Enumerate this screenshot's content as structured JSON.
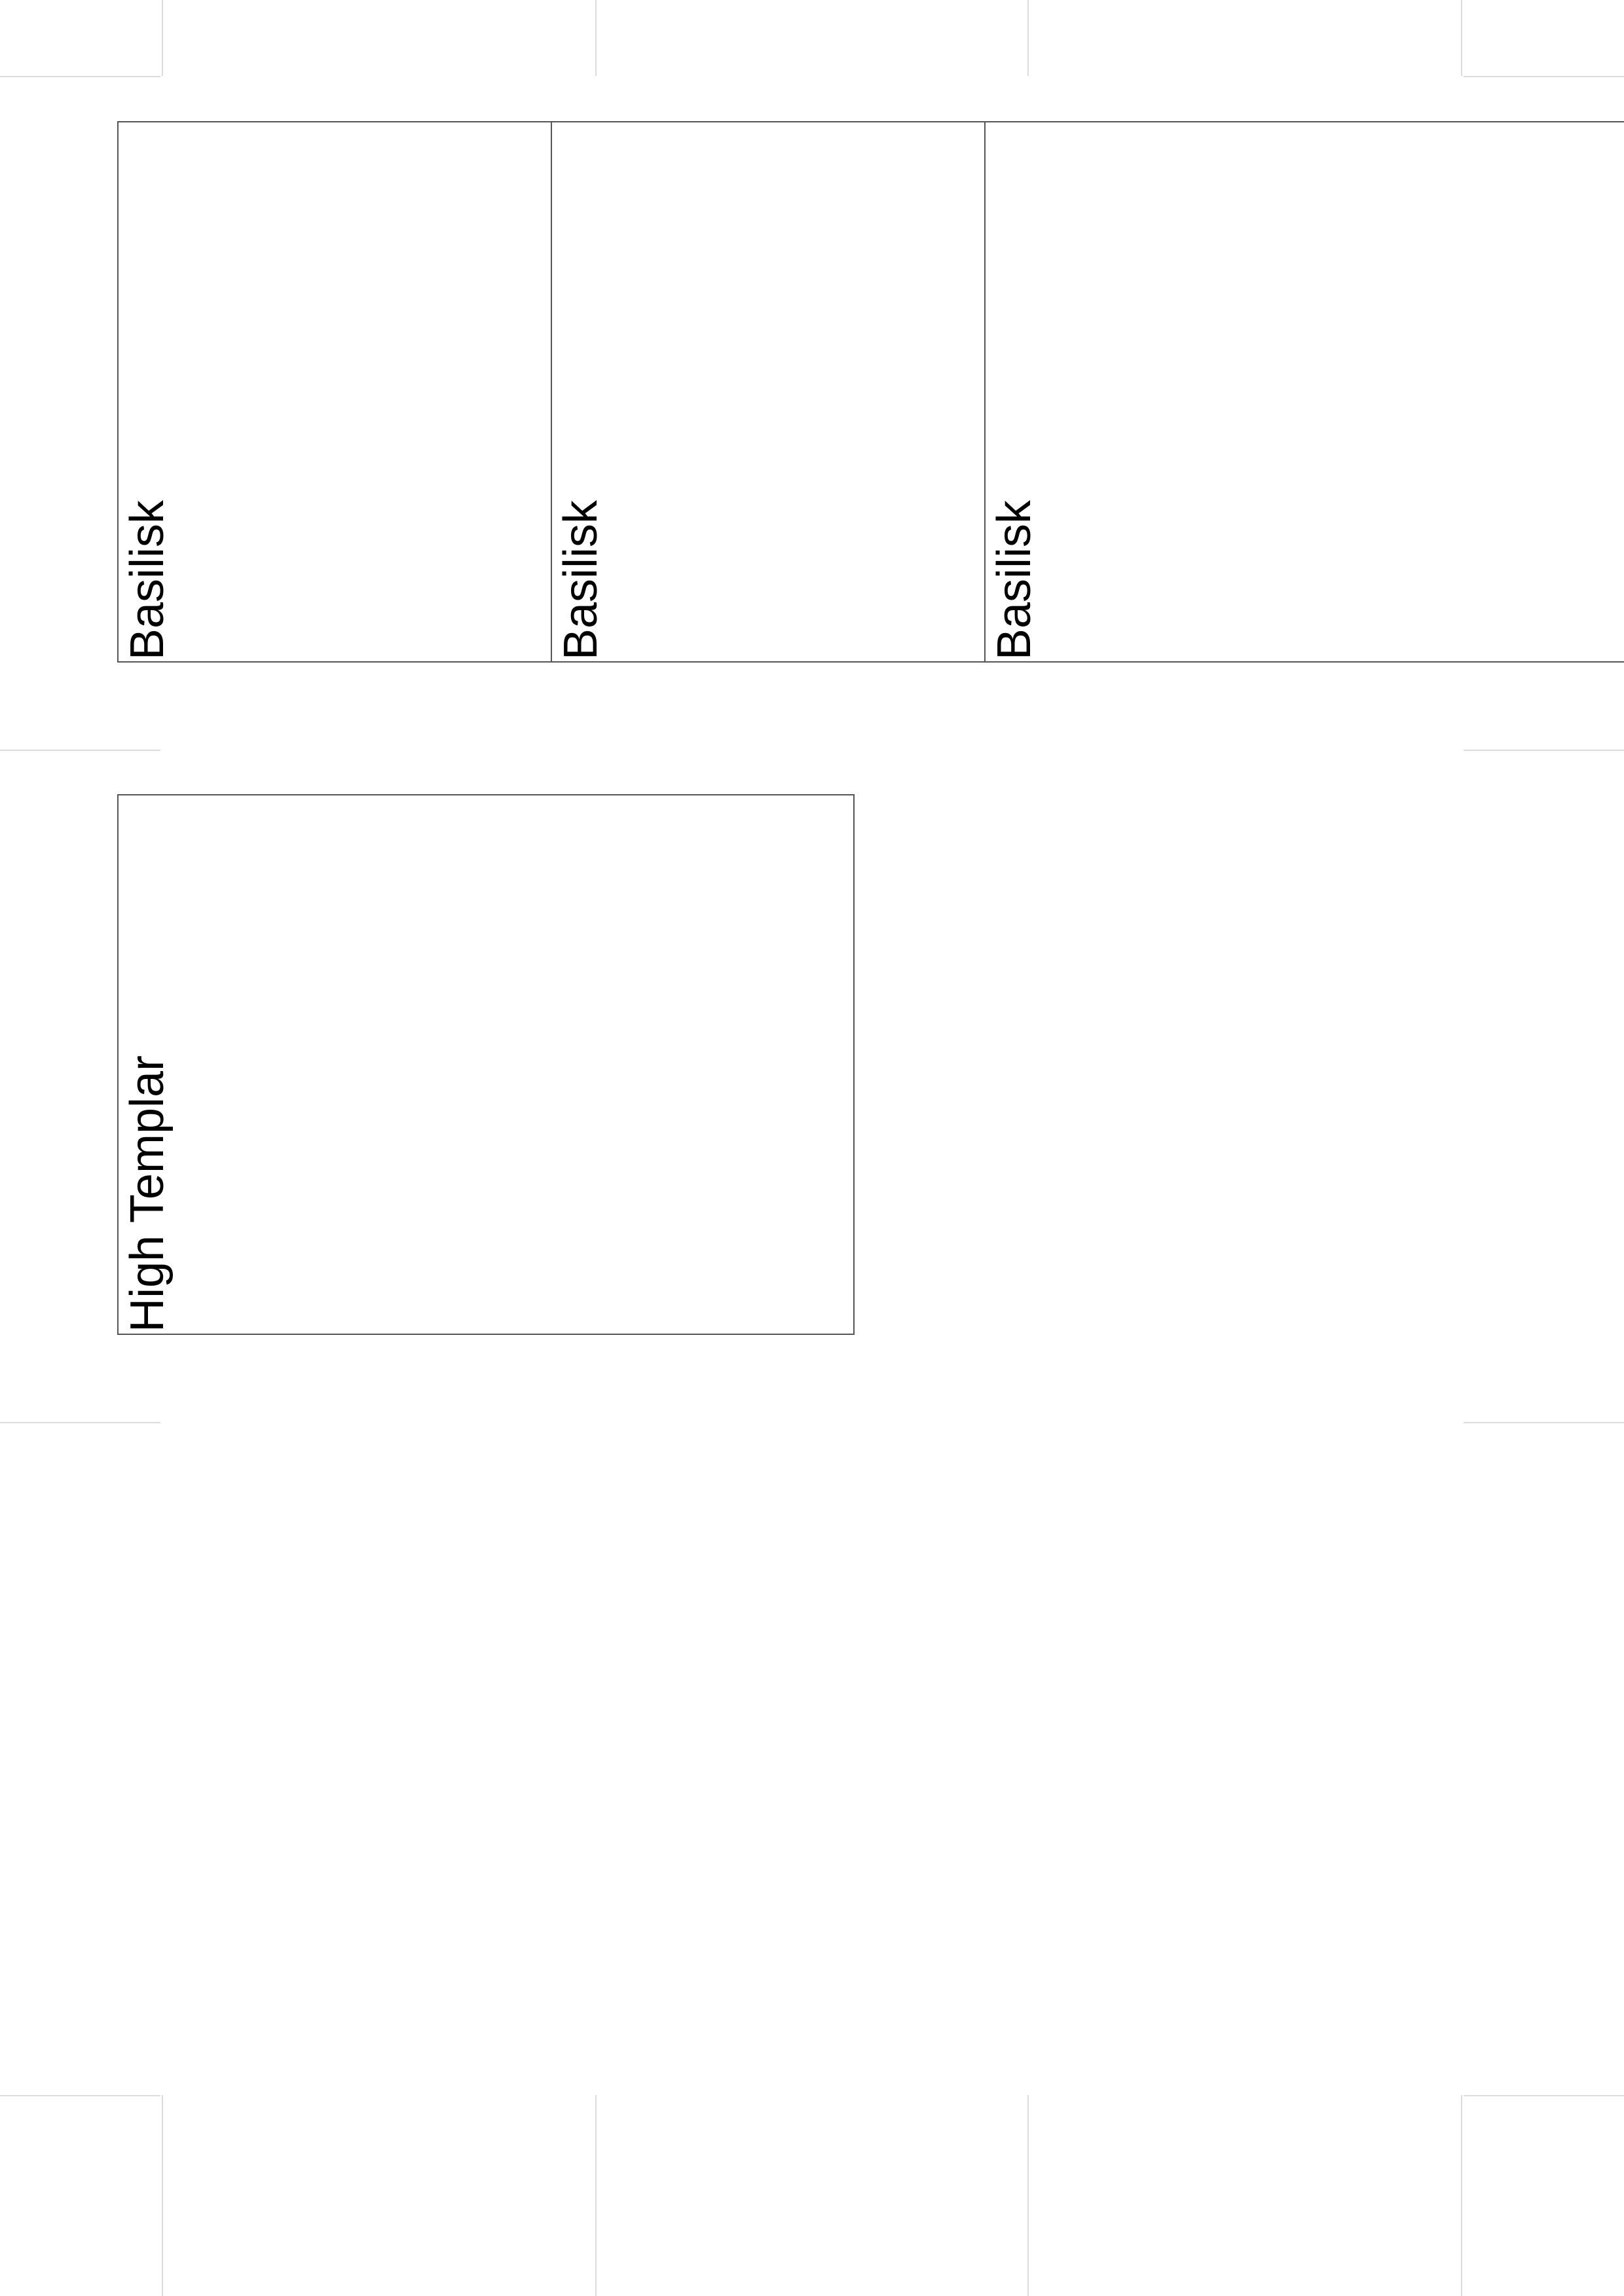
{
  "cards": [
    {
      "label": "Basilisk"
    },
    {
      "label": "Basilisk"
    },
    {
      "label": "Basilisk"
    },
    {
      "label": "High Templar"
    }
  ],
  "colors": {
    "border": "#555555",
    "cut_marks": "#dcdcdc",
    "text": "#000000"
  }
}
